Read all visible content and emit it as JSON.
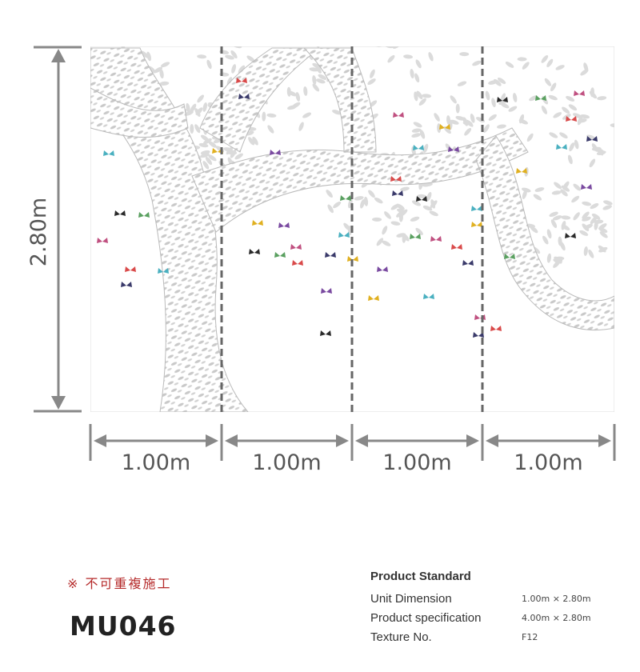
{
  "dimensions": {
    "height": "2.80m",
    "widths": [
      "1.00m",
      "1.00m",
      "1.00m",
      "1.00m"
    ]
  },
  "note": "※ 不可重複施工",
  "product_code": "MU046",
  "spec": {
    "title": "Product Standard",
    "rows": [
      [
        "Unit Dimension",
        "1.00m × 2.80m"
      ],
      [
        "Product specification",
        "4.00m × 2.80m"
      ],
      [
        "Texture No.",
        "F12"
      ]
    ]
  }
}
